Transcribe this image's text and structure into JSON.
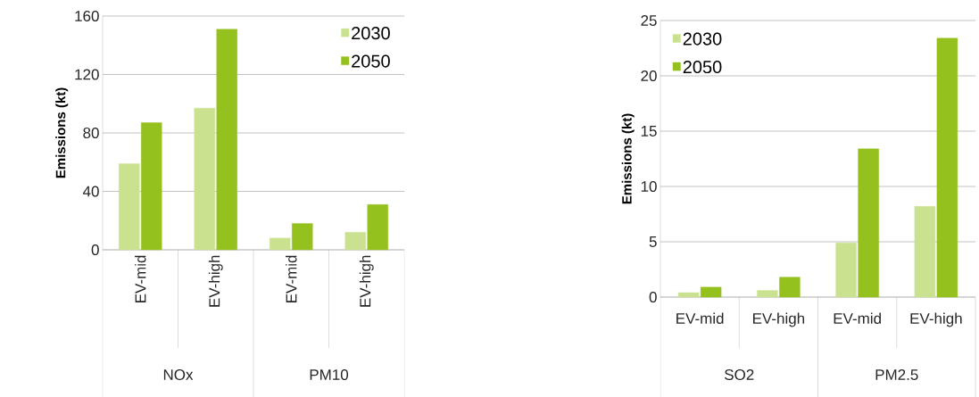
{
  "chart_data": [
    {
      "type": "bar",
      "ylabel": "Emissions (kt)",
      "categories": [
        "EV-mid",
        "EV-high",
        "EV-mid",
        "EV-high"
      ],
      "series": [
        {
          "name": "2030",
          "color": "#cae28f",
          "values": [
            59,
            97,
            8,
            12
          ]
        },
        {
          "name": "2050",
          "color": "#95c11f",
          "values": [
            87,
            151,
            18,
            31
          ]
        }
      ],
      "ylim": [
        0,
        160
      ],
      "yticks": [
        0,
        40,
        80,
        120,
        160
      ],
      "grid": "y",
      "legend": "top right",
      "annotations": [
        "NOx",
        "PM10"
      ]
    },
    {
      "type": "bar",
      "ylabel": "Emissions (kt)",
      "categories": [
        "EV-mid",
        "EV-high",
        "EV-mid",
        "EV-high"
      ],
      "series": [
        {
          "name": "2030",
          "color": "#cae28f",
          "values": [
            0.4,
            0.6,
            4.9,
            8.2
          ]
        },
        {
          "name": "2050",
          "color": "#95c11f",
          "values": [
            0.9,
            1.8,
            13.4,
            23.4
          ]
        }
      ],
      "ylim": [
        0,
        25
      ],
      "yticks": [
        0,
        5,
        10,
        15,
        20,
        25
      ],
      "grid": "y",
      "legend": "top left",
      "annotations": [
        "SO2",
        "PM2.5"
      ]
    }
  ]
}
